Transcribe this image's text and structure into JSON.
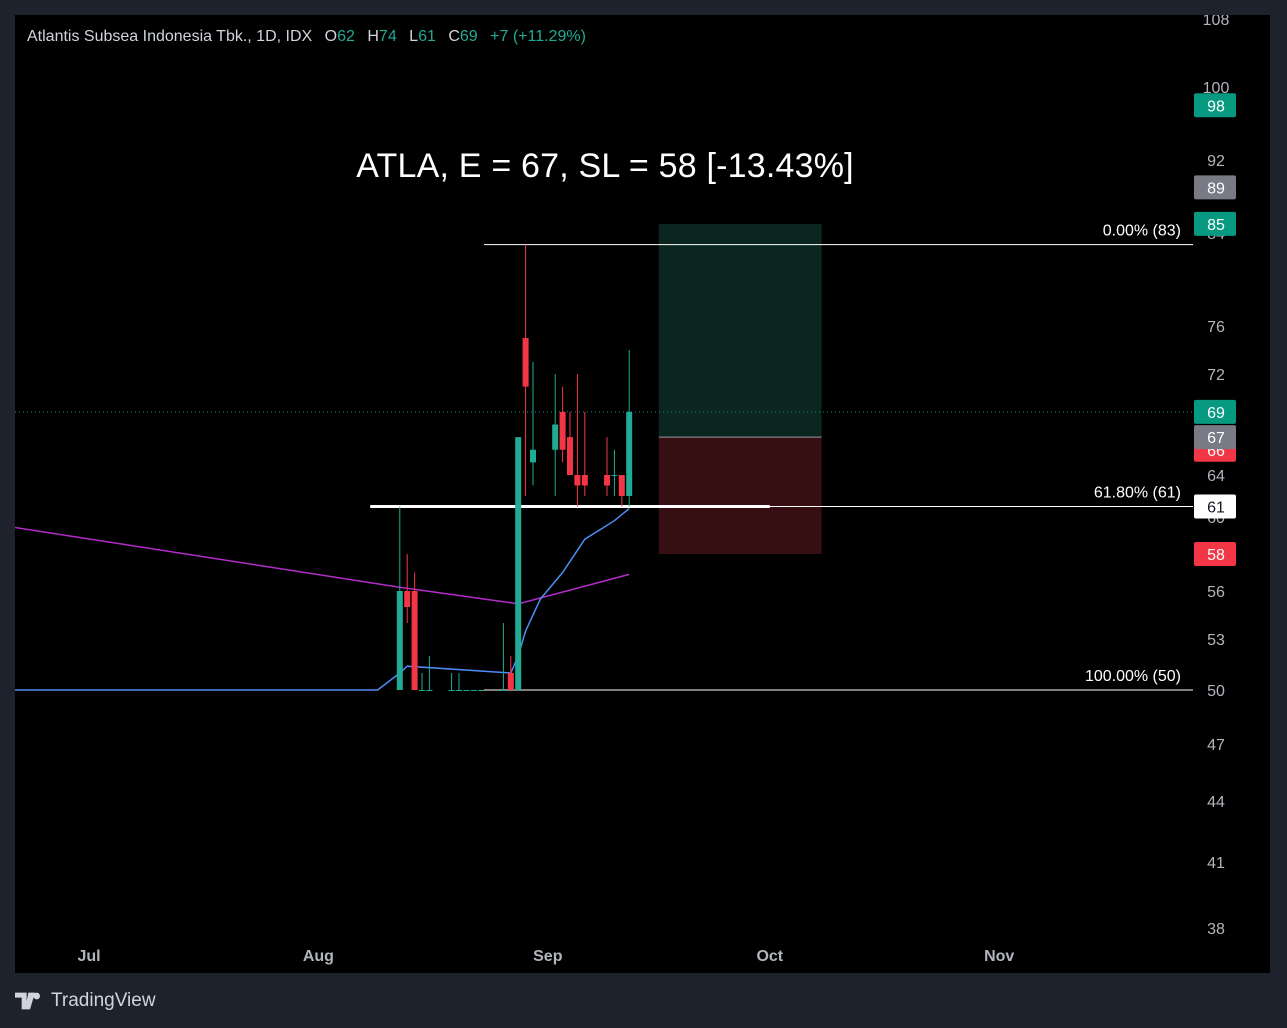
{
  "legend": {
    "name": "Atlantis Subsea Indonesia Tbk., 1D, IDX",
    "o_label": "O",
    "o_value": "62",
    "h_label": "H",
    "h_value": "74",
    "l_label": "L",
    "l_value": "61",
    "c_label": "C",
    "c_value": "69",
    "change": "+7 (+11.29%)"
  },
  "headline": "ATLA, E = 67, SL = 58 [-13.43%]",
  "brand": "TradingView",
  "colors": {
    "up": "#22ab94",
    "down": "#f23645",
    "ma_long": "#b32cc9",
    "ma_short": "#4e8cf5",
    "target_zone": "#0b2a22",
    "stop_zone": "#3a1014"
  },
  "chart_data": {
    "type": "candlestick",
    "symbol": "ATLA",
    "interval": "1D",
    "x_tick_labels": [
      "Jul",
      "Aug",
      "Sep",
      "Oct",
      "Nov"
    ],
    "y_tick_labels": [
      108,
      100,
      92,
      84,
      76,
      72,
      64,
      60,
      56,
      53,
      50,
      47,
      44,
      41,
      38
    ],
    "ylim": [
      38,
      108
    ],
    "candles": [
      {
        "date": "2024-08-12",
        "o": 50,
        "h": 61,
        "l": 50,
        "c": 56
      },
      {
        "date": "2024-08-13",
        "o": 56,
        "h": 58,
        "l": 54,
        "c": 55
      },
      {
        "date": "2024-08-14",
        "o": 56,
        "h": 57,
        "l": 50,
        "c": 50
      },
      {
        "date": "2024-08-15",
        "o": 50,
        "h": 51,
        "l": 50,
        "c": 50
      },
      {
        "date": "2024-08-16",
        "o": 50,
        "h": 52,
        "l": 50,
        "c": 50
      },
      {
        "date": "2024-08-19",
        "o": 50,
        "h": 51,
        "l": 50,
        "c": 50
      },
      {
        "date": "2024-08-20",
        "o": 50,
        "h": 51,
        "l": 50,
        "c": 50
      },
      {
        "date": "2024-08-21",
        "o": 50,
        "h": 50,
        "l": 50,
        "c": 50
      },
      {
        "date": "2024-08-22",
        "o": 50,
        "h": 50,
        "l": 50,
        "c": 50
      },
      {
        "date": "2024-08-23",
        "o": 50,
        "h": 50,
        "l": 50,
        "c": 50
      },
      {
        "date": "2024-08-26",
        "o": 50,
        "h": 54,
        "l": 50,
        "c": 50
      },
      {
        "date": "2024-08-27",
        "o": 51,
        "h": 52,
        "l": 50,
        "c": 50
      },
      {
        "date": "2024-08-28",
        "o": 50,
        "h": 67,
        "l": 50,
        "c": 67
      },
      {
        "date": "2024-08-29",
        "o": 75,
        "h": 83,
        "l": 62,
        "c": 71
      },
      {
        "date": "2024-08-30",
        "o": 65,
        "h": 73,
        "l": 63,
        "c": 66
      },
      {
        "date": "2024-09-02",
        "o": 66,
        "h": 72,
        "l": 62,
        "c": 68
      },
      {
        "date": "2024-09-03",
        "o": 69,
        "h": 71,
        "l": 65,
        "c": 66
      },
      {
        "date": "2024-09-04",
        "o": 67,
        "h": 69,
        "l": 64,
        "c": 64
      },
      {
        "date": "2024-09-05",
        "o": 64,
        "h": 72,
        "l": 61,
        "c": 63
      },
      {
        "date": "2024-09-06",
        "o": 64,
        "h": 69,
        "l": 62,
        "c": 63
      },
      {
        "date": "2024-09-09",
        "o": 64,
        "h": 67,
        "l": 62,
        "c": 63
      },
      {
        "date": "2024-09-10",
        "o": 64,
        "h": 66,
        "l": 62,
        "c": 64
      },
      {
        "date": "2024-09-11",
        "o": 64,
        "h": 64,
        "l": 61,
        "c": 62
      },
      {
        "date": "2024-09-12",
        "o": 62,
        "h": 74,
        "l": 61,
        "c": 69
      }
    ],
    "moving_averages": [
      {
        "color": "#b32cc9",
        "points": [
          [
            "2024-06-20",
            59.5
          ],
          [
            "2024-08-12",
            56.2
          ],
          [
            "2024-08-28",
            55.2
          ],
          [
            "2024-09-12",
            56.9
          ]
        ]
      },
      {
        "color": "#4e8cf5",
        "points": [
          [
            "2024-06-20",
            50
          ],
          [
            "2024-08-09",
            50
          ],
          [
            "2024-08-12",
            51
          ],
          [
            "2024-08-13",
            51.4
          ],
          [
            "2024-08-27",
            51
          ],
          [
            "2024-08-28",
            52
          ],
          [
            "2024-08-29",
            53.5
          ],
          [
            "2024-08-31",
            55.5
          ],
          [
            "2024-09-03",
            57
          ],
          [
            "2024-09-06",
            58.8
          ],
          [
            "2024-09-10",
            59.8
          ],
          [
            "2024-09-12",
            60.8
          ]
        ]
      }
    ],
    "fibonacci": [
      {
        "label": "0.00% (83)",
        "value": 83
      },
      {
        "label": "61.80% (61)",
        "value": 61
      },
      {
        "label": "100.00% (50)",
        "value": 50
      }
    ],
    "support_line": {
      "value": 61,
      "from": "2024-08-08",
      "to": "2024-10-01"
    },
    "position": {
      "entry": 67,
      "target": 85,
      "stop": 58,
      "from": "2024-09-16",
      "to": "2024-10-08"
    },
    "price_badges": [
      {
        "value": 98,
        "label": "98",
        "type": "up"
      },
      {
        "value": 89,
        "label": "89",
        "type": "neutral"
      },
      {
        "value": 85,
        "label": "85",
        "type": "up"
      },
      {
        "value": 69,
        "label": "69",
        "type": "up"
      },
      {
        "value": 66,
        "label": "66",
        "type": "down"
      },
      {
        "value": 67,
        "label": "67",
        "type": "neutral"
      },
      {
        "value": 61,
        "label": "61",
        "type": "white"
      },
      {
        "value": 58,
        "label": "58",
        "type": "down"
      }
    ],
    "last_price": 69
  }
}
